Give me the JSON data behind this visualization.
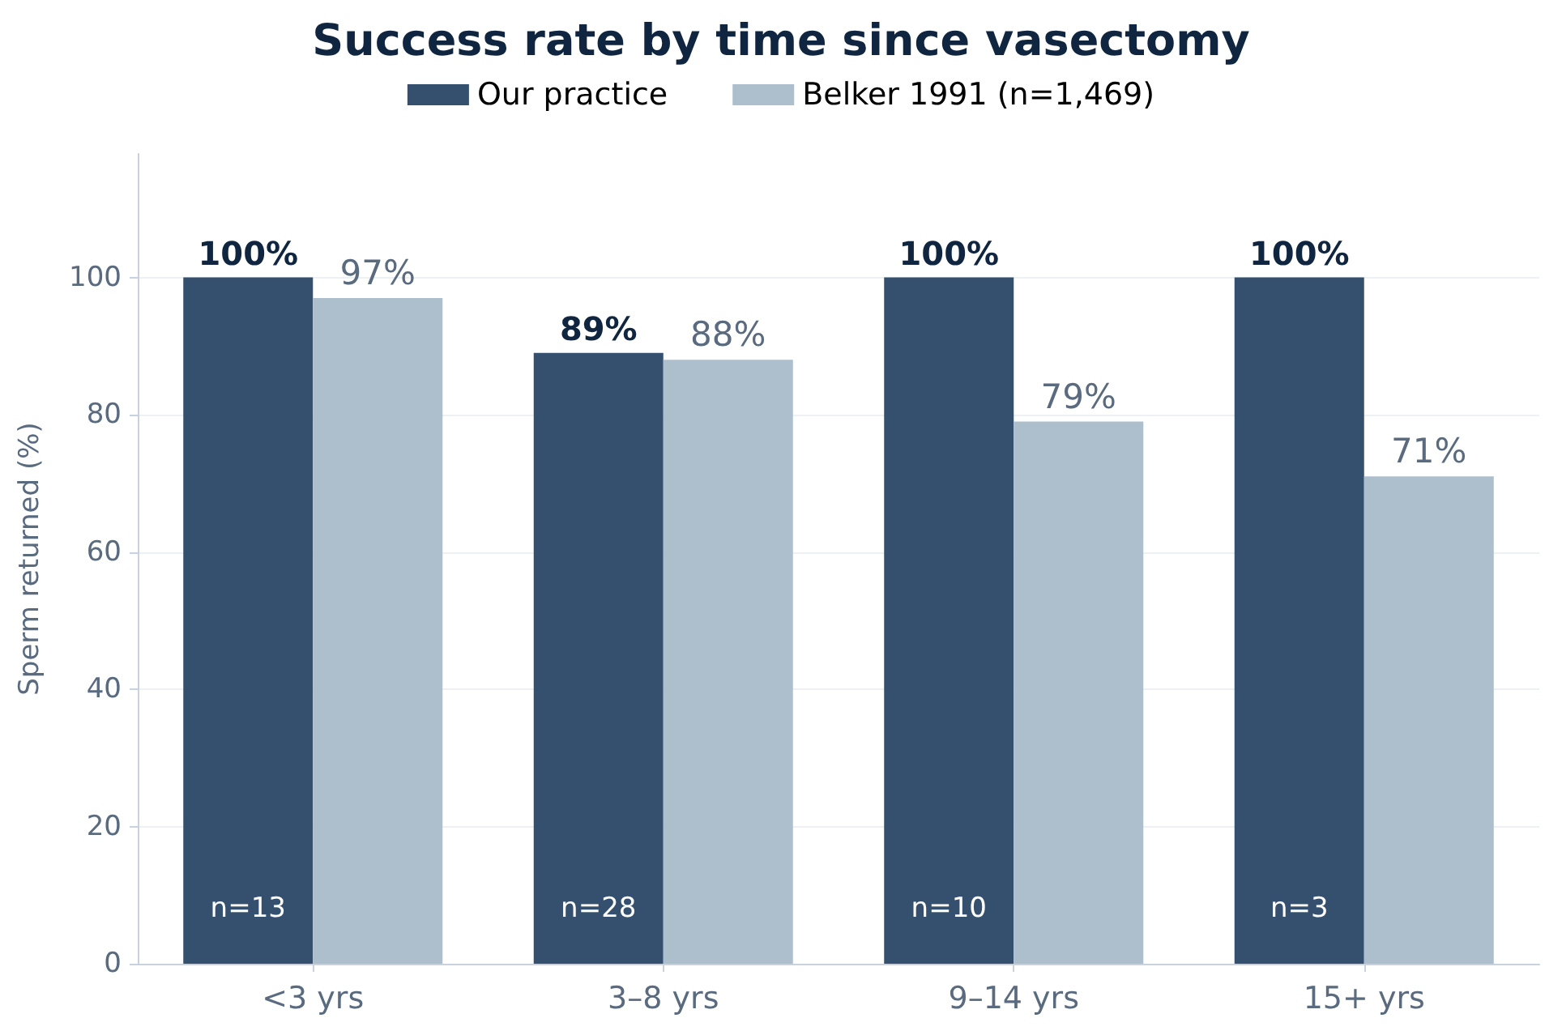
{
  "chart_data": {
    "type": "bar",
    "title": "Success rate by time since vasectomy",
    "ylabel": "Sperm returned (%)",
    "categories": [
      "<3 yrs",
      "3–8 yrs",
      "9–14 yrs",
      "15+ yrs"
    ],
    "series": [
      {
        "name": "Our practice",
        "color": "#34506e",
        "values": [
          100,
          89,
          100,
          100
        ],
        "value_labels": [
          "100%",
          "89%",
          "100%",
          "100%"
        ]
      },
      {
        "name": "Belker 1991 (n=1,469)",
        "color": "#adbecd",
        "values": [
          97,
          88,
          79,
          71
        ],
        "value_labels": [
          "97%",
          "88%",
          "79%",
          "71%"
        ]
      }
    ],
    "ylim": [
      0,
      118
    ],
    "yticks": [
      0,
      20,
      40,
      60,
      80,
      100
    ],
    "grid": "y",
    "legend": "top",
    "annotations": [
      {
        "text": "n=13",
        "x": "<3 yrs",
        "y": 8
      },
      {
        "text": "n=28",
        "x": "3–8 yrs",
        "y": 8
      },
      {
        "text": "n=10",
        "x": "9–14 yrs",
        "y": 8
      },
      {
        "text": "n=3",
        "x": "15+ yrs",
        "y": 8
      }
    ]
  }
}
